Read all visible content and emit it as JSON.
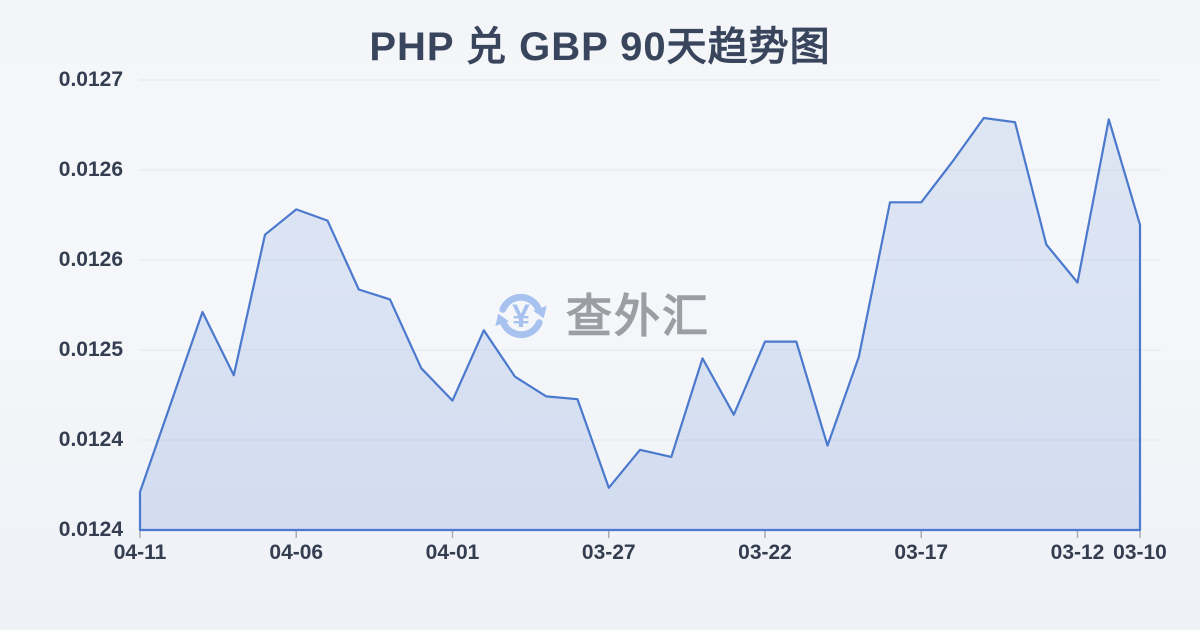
{
  "page": {
    "background_color": "#f3f5f8"
  },
  "header": {
    "title": "PHP 兑 GBP 90天趋势图",
    "title_color": "#39455c"
  },
  "watermark": {
    "text": "查外汇",
    "text_color": "#9c9ea3",
    "icon": "currency-yen-refresh-icon",
    "icon_color": "#a8c2ef"
  },
  "colors": {
    "line": "#4b79cd",
    "area_top": "rgba(75,121,205,0.13)",
    "area_bottom": "rgba(75,121,205,0.19)",
    "gridline": "#e5e8ec",
    "tick": "#a7adb5",
    "axis_text": "#343e50"
  },
  "chart_data": {
    "type": "area",
    "title": "PHP 兑 GBP 90天趋势图",
    "series_name": "PHP/GBP",
    "x": [
      "04-11",
      "04-10",
      "04-09",
      "04-08",
      "04-07",
      "04-06",
      "04-05",
      "04-04",
      "04-03",
      "04-02",
      "04-01",
      "03-31",
      "03-30",
      "03-29",
      "03-28",
      "03-27",
      "03-26",
      "03-25",
      "03-24",
      "03-23",
      "03-22",
      "03-21",
      "03-20",
      "03-19",
      "03-18",
      "03-17",
      "03-16",
      "03-15",
      "03-14",
      "03-13",
      "03-12",
      "03-11",
      "03-10"
    ],
    "values": [
      0.012407,
      0.012471,
      0.012535,
      0.01249,
      0.01259,
      0.012608,
      0.0126,
      0.012551,
      0.012544,
      0.012495,
      0.012472,
      0.012522,
      0.012489,
      0.012475,
      0.012473,
      0.01241,
      0.012437,
      0.012432,
      0.012502,
      0.012462,
      0.012514,
      0.012514,
      0.01244,
      0.012503,
      0.012613,
      0.012613,
      0.012642,
      0.012673,
      0.01267,
      0.012583,
      0.012556,
      0.012672,
      0.012597
    ],
    "x_tick_labels": [
      "04-11",
      "04-06",
      "04-01",
      "03-27",
      "03-22",
      "03-17",
      "03-12",
      "03-10"
    ],
    "x_tick_indices": [
      0,
      5,
      10,
      15,
      20,
      25,
      30,
      32
    ],
    "y_tick_labels": [
      "0.0127",
      "0.0126",
      "0.0126",
      "0.0125",
      "0.0124",
      "0.0124"
    ],
    "ylim": [
      0.01238,
      0.0127
    ],
    "xlabel": "",
    "ylabel": "",
    "grid": true,
    "legend": false,
    "note": "x axis runs from newest date (04-11) on the left to oldest (03-10) on the right"
  }
}
